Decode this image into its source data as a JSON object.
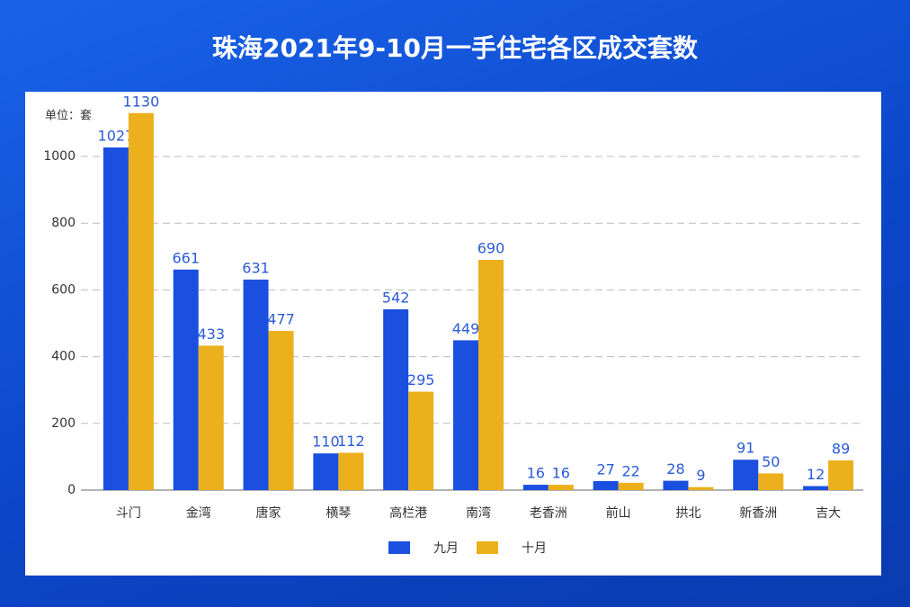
{
  "chart_data": {
    "type": "bar",
    "title": "珠海2021年9-10月一手住宅各区成交套数",
    "unit_label": "单位：套",
    "categories": [
      "斗门",
      "金湾",
      "唐家",
      "横琴",
      "高栏港",
      "南湾",
      "老香洲",
      "前山",
      "拱北",
      "新香洲",
      "吉大"
    ],
    "series": [
      {
        "name": "九月",
        "color": "#1a4fe0",
        "values": [
          1027,
          661,
          631,
          110,
          542,
          449,
          16,
          27,
          28,
          91,
          12
        ]
      },
      {
        "name": "十月",
        "color": "#ebb01b",
        "values": [
          1130,
          433,
          477,
          112,
          295,
          690,
          16,
          22,
          9,
          50,
          89
        ]
      }
    ],
    "ylim": [
      0,
      1150
    ],
    "yticks": [
      0,
      200,
      400,
      600,
      800,
      1000
    ],
    "grid": true,
    "legend": "bottom"
  }
}
